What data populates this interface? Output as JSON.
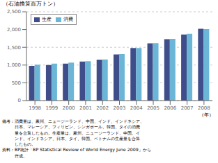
{
  "chart_data": {
    "type": "bar",
    "ylabel": "（石油換算百万トン）",
    "xlabel": "（年）",
    "categories": [
      "1998",
      "1999",
      "2000",
      "2001",
      "2002",
      "2003",
      "2004",
      "2005",
      "2006",
      "2007",
      "2008"
    ],
    "series": [
      {
        "name": "生産",
        "color": "#3f4d8a",
        "values": [
          975,
          1000,
          1040,
          1100,
          1150,
          1300,
          1480,
          1610,
          1730,
          1860,
          2020
        ]
      },
      {
        "name": "消費",
        "color": "#6bb5d6",
        "values": [
          1010,
          1040,
          1070,
          1110,
          1155,
          1310,
          1480,
          1615,
          1740,
          1880,
          2010
        ]
      }
    ],
    "ylim": [
      0,
      2500
    ],
    "yticks": [
      0,
      500,
      {
        "value": 1000,
        "label": "1,000"
      },
      {
        "value": 1500,
        "label": "1,500"
      },
      {
        "value": 2000,
        "label": "2,000"
      },
      {
        "value": 2500,
        "label": "2,500"
      }
    ],
    "grid": true,
    "legend": "upper left",
    "annotations": [
      "備考：消費量は、豪州、ニュージーランド、中国、インド、インドネシア、",
      "　　　日本、マレーシア、フィリピン、シンガポール、韓国、タイの消費",
      "　　　量を合算したもの。生産量は、豪州、ニュージーランド、中国、イ",
      "　　　ンド、インドネシア、日本、タイ、韓国、ベトナムの生産量を合算",
      "　　　したもの。",
      "資料：BP統計「BP Statistical Review of World Energy June 2009」から",
      "　　　作成。"
    ]
  }
}
